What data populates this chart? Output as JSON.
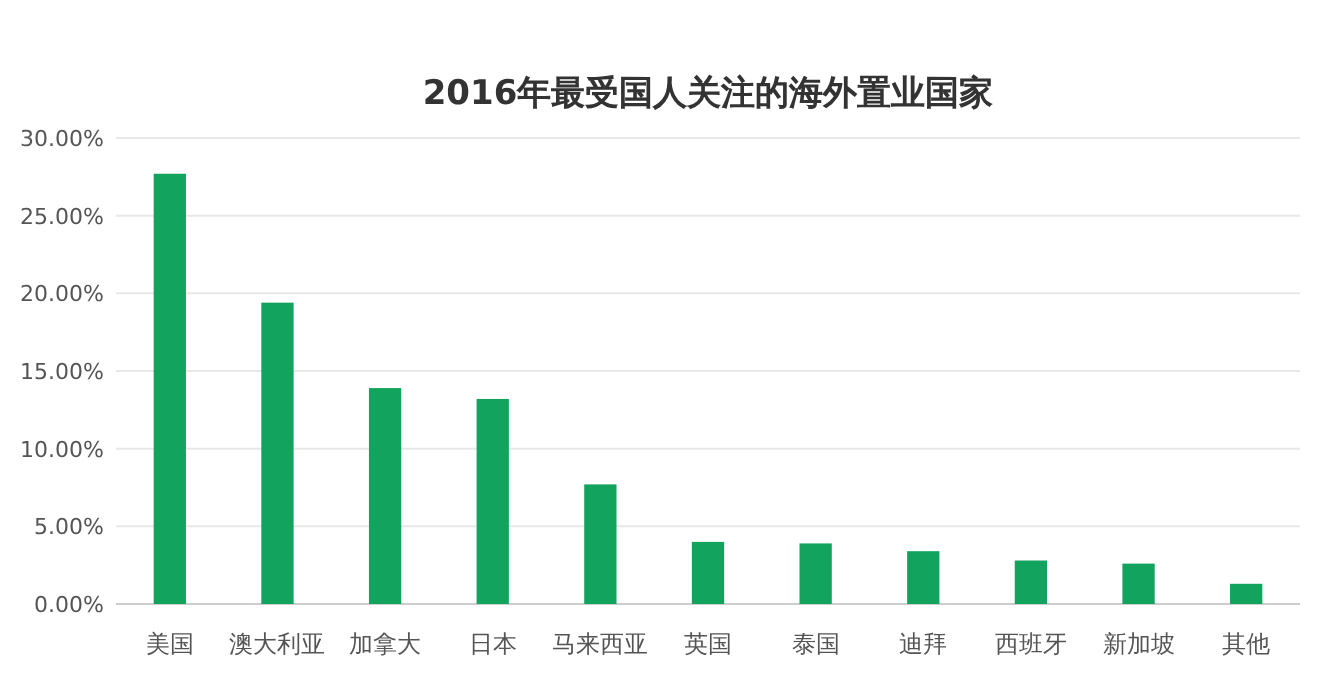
{
  "chart_data": {
    "type": "bar",
    "title": "2016年最受国人关注的海外置业国家",
    "categories": [
      "美国",
      "澳大利亚",
      "加拿大",
      "日本",
      "马来西亚",
      "英国",
      "泰国",
      "迪拜",
      "西班牙",
      "新加坡",
      "其他"
    ],
    "values": [
      27.7,
      19.4,
      13.9,
      13.2,
      7.7,
      4.0,
      3.9,
      3.4,
      2.8,
      2.6,
      1.3
    ],
    "color": "#12a35f",
    "ylim": [
      0,
      30
    ],
    "yticks": [
      {
        "value": 0,
        "label": "0.00%"
      },
      {
        "value": 5,
        "label": "5.00%"
      },
      {
        "value": 10,
        "label": "10.00%"
      },
      {
        "value": 15,
        "label": "15.00%"
      },
      {
        "value": 20,
        "label": "20.00%"
      },
      {
        "value": 25,
        "label": "25.00%"
      },
      {
        "value": 30,
        "label": "30.00%"
      }
    ],
    "grid": "y"
  }
}
